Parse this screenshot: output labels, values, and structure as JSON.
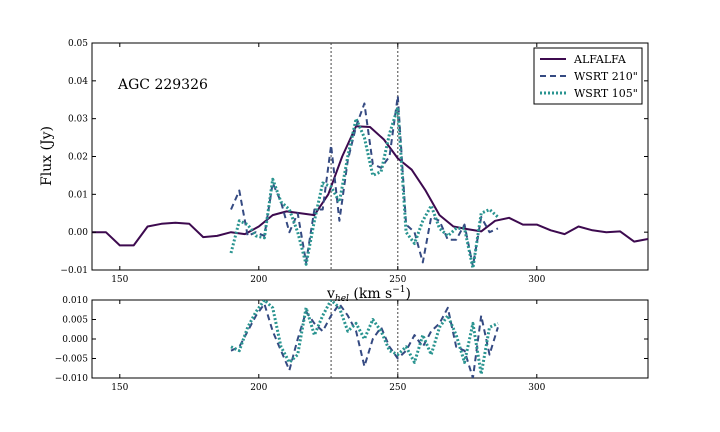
{
  "chart_data": [
    {
      "type": "line",
      "panel": "main",
      "annotation": "AGC 229326",
      "xlabel": "v_hel (km s^-1)",
      "xlabel_main": "v",
      "xlabel_sub": "hel",
      "xlabel_units": " (km s",
      "xlabel_exp": "−1",
      "xlabel_close": ")",
      "ylabel": "Flux (Jy)",
      "xlim": [
        140,
        340
      ],
      "ylim": [
        -0.01,
        0.05
      ],
      "xticks": [
        150,
        200,
        250,
        300
      ],
      "xtick_labels": [
        "150",
        "200",
        "250",
        "300"
      ],
      "yticks": [
        -0.01,
        0.0,
        0.01,
        0.02,
        0.03,
        0.04,
        0.05
      ],
      "ytick_labels": [
        "−0.01",
        "0.00",
        "0.01",
        "0.02",
        "0.03",
        "0.04",
        "0.05"
      ],
      "vlines": [
        226,
        250
      ],
      "legend_position": "top-right",
      "series": [
        {
          "name": "ALFALFA",
          "color": "#3d0a4f",
          "style": "solid",
          "x": [
            140,
            145,
            150,
            155,
            160,
            165,
            170,
            175,
            180,
            185,
            190,
            195,
            200,
            205,
            210,
            215,
            220,
            225,
            230,
            235,
            240,
            245,
            250,
            255,
            260,
            265,
            270,
            275,
            280,
            285,
            290,
            295,
            300,
            305,
            310,
            315,
            320,
            325,
            330,
            335,
            340
          ],
          "y": [
            0.0,
            0.0,
            -0.0035,
            -0.0035,
            0.0015,
            0.0022,
            0.0025,
            0.0022,
            -0.0013,
            -0.001,
            0.0,
            -0.0005,
            0.0015,
            0.0045,
            0.0055,
            0.005,
            0.0045,
            0.01,
            0.02,
            0.028,
            0.0278,
            0.0245,
            0.0195,
            0.0165,
            0.011,
            0.0045,
            0.0015,
            0.0008,
            0.0002,
            0.003,
            0.0038,
            0.002,
            0.002,
            0.0005,
            -0.0005,
            0.0015,
            0.0005,
            0.0,
            0.0002,
            -0.0025,
            -0.0018
          ]
        },
        {
          "name": "WSRT 210\"",
          "color": "#354a82",
          "style": "dashed",
          "x": [
            190,
            193,
            196,
            199,
            202,
            205,
            208,
            211,
            214,
            217,
            220,
            223,
            226,
            229,
            232,
            235,
            238,
            241,
            244,
            247,
            250,
            253,
            256,
            259,
            262,
            265,
            268,
            271,
            274,
            277,
            280,
            283,
            286
          ],
          "y": [
            0.006,
            0.011,
            -0.001,
            0.0,
            -0.001,
            0.013,
            0.008,
            0.0,
            0.005,
            -0.008,
            0.006,
            0.006,
            0.023,
            0.003,
            0.019,
            0.028,
            0.034,
            0.018,
            0.017,
            0.02,
            0.036,
            0.002,
            0.0,
            -0.008,
            0.004,
            0.003,
            -0.002,
            -0.002,
            0.002,
            -0.009,
            0.004,
            0.0,
            0.001
          ]
        },
        {
          "name": "WSRT 105\"",
          "color": "#2a9490",
          "style": "dotted",
          "x": [
            190,
            193,
            196,
            199,
            202,
            205,
            208,
            211,
            214,
            217,
            220,
            223,
            226,
            229,
            232,
            235,
            238,
            241,
            244,
            247,
            250,
            253,
            256,
            259,
            262,
            265,
            268,
            271,
            274,
            277,
            280,
            283,
            286
          ],
          "y": [
            -0.0055,
            0.003,
            0.002,
            -0.001,
            -0.0015,
            0.014,
            0.008,
            0.006,
            0.0,
            -0.0085,
            0.003,
            0.013,
            0.012,
            0.008,
            0.02,
            0.03,
            0.025,
            0.015,
            0.016,
            0.026,
            0.033,
            0.0,
            -0.003,
            0.003,
            0.007,
            0.001,
            -0.001,
            0.001,
            0.001,
            -0.0095,
            0.005,
            0.006,
            0.004
          ]
        }
      ]
    },
    {
      "type": "line",
      "panel": "residual",
      "xlim": [
        140,
        340
      ],
      "ylim": [
        -0.01,
        0.01
      ],
      "xticks": [
        150,
        200,
        250,
        300
      ],
      "xtick_labels": [
        "150",
        "200",
        "250",
        "300"
      ],
      "yticks": [
        -0.01,
        -0.005,
        0.0,
        0.005,
        0.01
      ],
      "ytick_labels": [
        "−0.010",
        "−0.005",
        "0.000",
        "0.005",
        "0.010"
      ],
      "vlines": [
        226,
        250
      ],
      "series": [
        {
          "color": "#354a82",
          "style": "dashed",
          "x": [
            190,
            193,
            196,
            199,
            202,
            205,
            208,
            211,
            214,
            217,
            220,
            223,
            226,
            229,
            232,
            235,
            238,
            241,
            244,
            247,
            250,
            253,
            256,
            259,
            262,
            265,
            268,
            271,
            274,
            277,
            280,
            283,
            286
          ],
          "y": [
            -0.003,
            -0.002,
            0.002,
            0.006,
            0.009,
            0.002,
            -0.003,
            -0.008,
            0.0,
            0.007,
            0.004,
            0.002,
            0.006,
            0.009,
            0.006,
            0.002,
            -0.007,
            0.0,
            0.003,
            -0.002,
            -0.005,
            -0.003,
            0.001,
            -0.002,
            0.002,
            0.004,
            0.008,
            -0.002,
            -0.003,
            -0.01,
            0.006,
            -0.004,
            0.003
          ]
        },
        {
          "color": "#2a9490",
          "style": "dotted",
          "x": [
            190,
            193,
            196,
            199,
            202,
            205,
            208,
            211,
            214,
            217,
            220,
            223,
            226,
            229,
            232,
            235,
            238,
            241,
            244,
            247,
            250,
            253,
            256,
            259,
            262,
            265,
            268,
            271,
            274,
            277,
            280,
            283,
            286
          ],
          "y": [
            -0.002,
            -0.003,
            0.003,
            0.007,
            0.01,
            0.008,
            -0.002,
            -0.006,
            -0.004,
            0.008,
            0.001,
            0.006,
            0.01,
            0.008,
            0.002,
            0.004,
            0.0,
            0.005,
            0.002,
            -0.003,
            -0.004,
            -0.002,
            -0.006,
            0.001,
            -0.004,
            0.003,
            0.006,
            0.001,
            -0.006,
            0.004,
            -0.009,
            0.003,
            0.004
          ]
        }
      ]
    }
  ]
}
